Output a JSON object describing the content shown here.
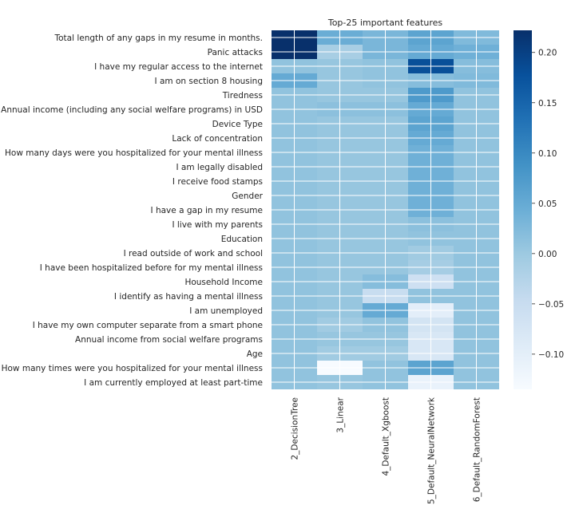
{
  "chart_data": {
    "type": "heatmap",
    "title": "Top-25 important features",
    "columns": [
      "2_DecisionTree",
      "3_Linear",
      "4_Default_Xgboost",
      "5_Default_NeuralNetwork",
      "6_Default_RandomForest"
    ],
    "rows": [
      "Total length of any gaps in my resume in months.",
      "Panic attacks",
      "I have my regular access to the internet",
      "I am on section 8 housing",
      "Tiredness",
      "Annual income (including any social welfare programs) in USD",
      "Device Type",
      "Lack of concentration",
      "How many days were you hospitalized for your mental illness",
      "I am legally disabled",
      "I receive food stamps",
      "Gender",
      "I have a gap in my resume",
      "I live with my parents",
      "Education",
      "I read outside of work and school",
      "I have been hospitalized before for my mental illness",
      "Household Income",
      "I identify as having a mental illness",
      "I am unemployed",
      "I have my own computer separate from a smart phone",
      "Annual income from social welfare programs",
      "Age",
      "How many times were you hospitalized for your mental illness",
      "I am currently employed at least part-time"
    ],
    "values": [
      [
        0.222,
        0.045,
        0.03,
        0.06,
        0.025
      ],
      [
        0.222,
        -0.012,
        0.03,
        0.05,
        0.04
      ],
      [
        0.01,
        0.005,
        0.01,
        0.18,
        0.02
      ],
      [
        0.05,
        0.005,
        0.01,
        0.02,
        0.025
      ],
      [
        0.01,
        0.005,
        0.005,
        0.075,
        0.01
      ],
      [
        0.01,
        0.015,
        0.015,
        0.05,
        0.01
      ],
      [
        0.01,
        0.005,
        0.005,
        0.06,
        0.01
      ],
      [
        0.01,
        0.005,
        0.005,
        0.05,
        0.01
      ],
      [
        0.01,
        0.005,
        0.005,
        0.04,
        0.01
      ],
      [
        0.01,
        0.005,
        0.005,
        0.04,
        0.01
      ],
      [
        0.01,
        0.005,
        0.005,
        0.04,
        0.01
      ],
      [
        0.01,
        0.005,
        0.005,
        0.04,
        0.01
      ],
      [
        0.01,
        0.005,
        0.005,
        0.04,
        0.01
      ],
      [
        0.01,
        0.005,
        0.005,
        0.015,
        0.01
      ],
      [
        0.01,
        0.005,
        0.005,
        0.01,
        0.01
      ],
      [
        0.01,
        0.005,
        0.005,
        -0.005,
        0.01
      ],
      [
        0.01,
        0.005,
        0.005,
        -0.01,
        0.01
      ],
      [
        0.01,
        0.005,
        0.02,
        -0.06,
        0.01
      ],
      [
        0.01,
        0.005,
        -0.05,
        0.01,
        0.01
      ],
      [
        0.01,
        0.005,
        0.05,
        -0.1,
        0.01
      ],
      [
        0.01,
        -0.005,
        0.01,
        -0.07,
        0.01
      ],
      [
        0.01,
        0.005,
        0.005,
        -0.08,
        0.01
      ],
      [
        0.01,
        -0.005,
        -0.005,
        -0.08,
        0.01
      ],
      [
        0.01,
        -0.135,
        0.01,
        0.06,
        0.01
      ],
      [
        0.01,
        0.005,
        0.01,
        -0.11,
        0.01
      ]
    ],
    "colorbar": {
      "colormap": "Blues",
      "min": -0.135,
      "max": 0.222,
      "ticks": [
        -0.1,
        -0.05,
        0.0,
        0.05,
        0.1,
        0.15,
        0.2
      ],
      "tick_labels": [
        "−0.10",
        "−0.05",
        "0.00",
        "0.05",
        "0.10",
        "0.15",
        "0.20"
      ]
    },
    "grid": true,
    "legend": "colorbar-right"
  }
}
